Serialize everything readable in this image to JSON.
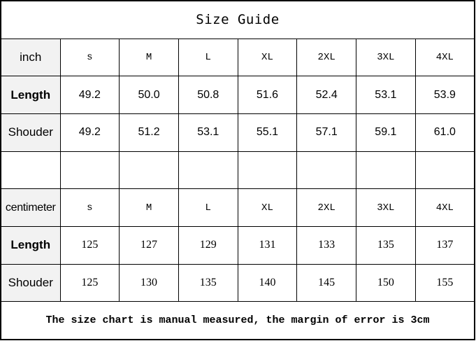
{
  "title": "Size Guide",
  "sizes": [
    "s",
    "M",
    "L",
    "XL",
    "2XL",
    "3XL",
    "4XL"
  ],
  "inch": {
    "unit_label": "inch",
    "rows": [
      {
        "label": "Length",
        "values": [
          "49.2",
          "50.0",
          "50.8",
          "51.6",
          "52.4",
          "53.1",
          "53.9"
        ]
      },
      {
        "label": "Shouder",
        "values": [
          "49.2",
          "51.2",
          "53.1",
          "55.1",
          "57.1",
          "59.1",
          "61.0"
        ]
      }
    ]
  },
  "centimeter": {
    "unit_label": "centimeter",
    "rows": [
      {
        "label": "Length",
        "values": [
          "125",
          "127",
          "129",
          "131",
          "133",
          "135",
          "137"
        ]
      },
      {
        "label": "Shouder",
        "values": [
          "125",
          "130",
          "135",
          "140",
          "145",
          "150",
          "155"
        ]
      }
    ]
  },
  "footer": "The size chart is manual measured, the margin of error is 3cm"
}
